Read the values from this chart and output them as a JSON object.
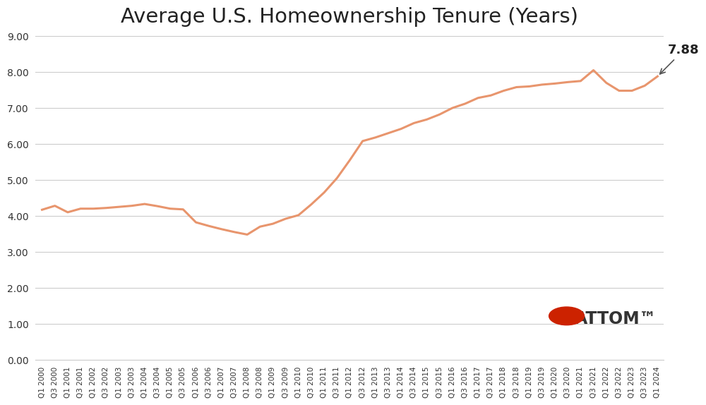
{
  "title": "Average U.S. Homeownership Tenure (Years)",
  "title_fontsize": 21,
  "line_color": "#E8956D",
  "line_width": 2.2,
  "annotation_value": "7.88",
  "ylim": [
    0.0,
    9.0
  ],
  "yticks": [
    0.0,
    1.0,
    2.0,
    3.0,
    4.0,
    5.0,
    6.0,
    7.0,
    8.0,
    9.0
  ],
  "background_color": "#ffffff",
  "grid_color": "#cccccc",
  "labels": [
    "Q1 2000",
    "Q3 2000",
    "Q1 2001",
    "Q3 2001",
    "Q1 2002",
    "Q3 2002",
    "Q1 2003",
    "Q3 2003",
    "Q1 2004",
    "Q3 2004",
    "Q1 2005",
    "Q3 2005",
    "Q1 2006",
    "Q3 2006",
    "Q1 2007",
    "Q3 2007",
    "Q1 2008",
    "Q3 2008",
    "Q1 2009",
    "Q3 2009",
    "Q1 2010",
    "Q3 2010",
    "Q1 2011",
    "Q3 2011",
    "Q1 2012",
    "Q3 2012",
    "Q1 2013",
    "Q3 2013",
    "Q1 2014",
    "Q3 2014",
    "Q1 2015",
    "Q3 2015",
    "Q1 2016",
    "Q3 2016",
    "Q1 2017",
    "Q3 2017",
    "Q1 2018",
    "Q3 2018",
    "Q1 2019",
    "Q3 2019",
    "Q1 2020",
    "Q3 2020",
    "Q1 2021",
    "Q3 2021",
    "Q1 2022",
    "Q3 2022",
    "Q1 2023",
    "Q3 2023",
    "Q1 2024"
  ],
  "values": [
    4.17,
    4.28,
    4.1,
    4.2,
    4.2,
    4.22,
    4.25,
    4.28,
    4.33,
    4.27,
    4.2,
    4.18,
    3.82,
    3.72,
    3.63,
    3.55,
    3.48,
    3.7,
    3.78,
    3.92,
    4.02,
    4.32,
    4.65,
    5.05,
    5.55,
    6.08,
    6.18,
    6.3,
    6.42,
    6.58,
    6.68,
    6.82,
    7.0,
    7.12,
    7.28,
    7.35,
    7.48,
    7.58,
    7.6,
    7.65,
    7.68,
    7.72,
    7.75,
    8.05,
    7.7,
    7.48,
    7.48,
    7.62,
    7.88
  ],
  "attom_logo_text": "ATTOM",
  "attom_logo_color": "#cc0000",
  "attom_tm": "™"
}
